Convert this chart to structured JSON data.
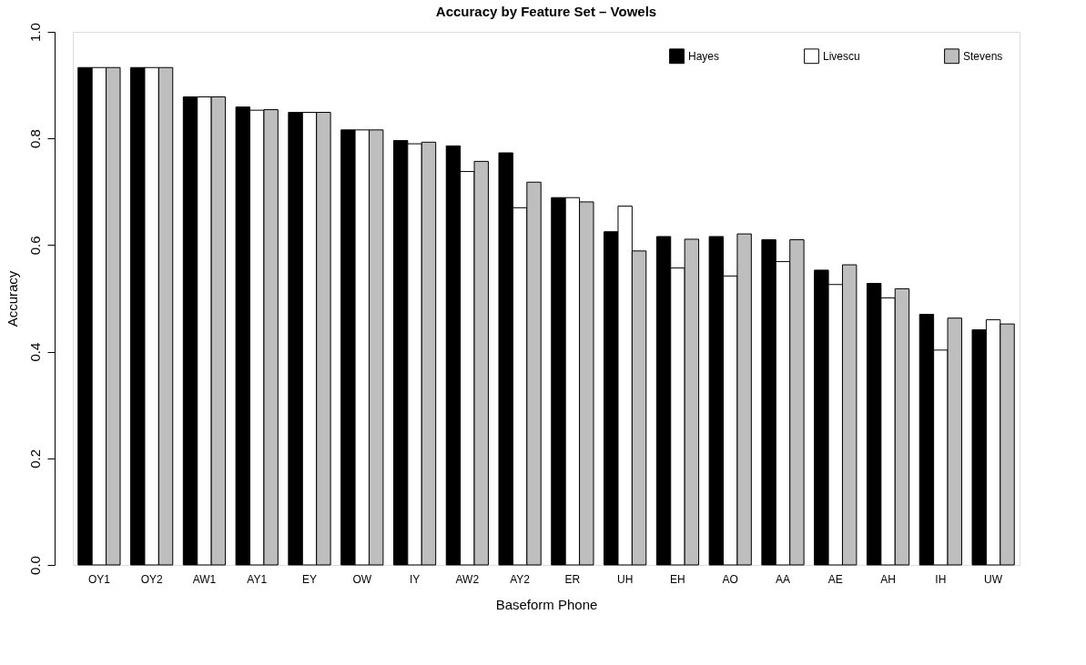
{
  "chart_data": {
    "type": "bar",
    "title": "Accuracy by Feature Set – Vowels",
    "xlabel": "Baseform Phone",
    "ylabel": "Accuracy",
    "categories": [
      "OY1",
      "OY2",
      "AW1",
      "AY1",
      "EY",
      "OW",
      "IY",
      "AW2",
      "AY2",
      "ER",
      "UH",
      "EH",
      "AO",
      "AA",
      "AE",
      "AH",
      "IH",
      "UW"
    ],
    "series": [
      {
        "name": "Hayes",
        "color": "#000000",
        "values": [
          0.933,
          0.933,
          0.878,
          0.859,
          0.849,
          0.816,
          0.796,
          0.786,
          0.773,
          0.689,
          0.625,
          0.616,
          0.616,
          0.61,
          0.553,
          0.528,
          0.47,
          0.441
        ]
      },
      {
        "name": "Livescu",
        "color": "#ffffff",
        "values": [
          0.933,
          0.933,
          0.878,
          0.853,
          0.849,
          0.816,
          0.79,
          0.738,
          0.67,
          0.689,
          0.673,
          0.557,
          0.542,
          0.569,
          0.526,
          0.501,
          0.403,
          0.46
        ]
      },
      {
        "name": "Stevens",
        "color": "#bebebe",
        "values": [
          0.933,
          0.933,
          0.878,
          0.854,
          0.849,
          0.816,
          0.793,
          0.757,
          0.718,
          0.681,
          0.589,
          0.611,
          0.621,
          0.61,
          0.563,
          0.518,
          0.463,
          0.452
        ]
      }
    ],
    "ylim": [
      0,
      1
    ],
    "yticks": [
      {
        "value": 0,
        "label": "0.0"
      },
      0.2,
      0.4,
      0.6,
      0.8,
      {
        "value": 1,
        "label": "1.0"
      }
    ],
    "legend": "top right",
    "grid": false
  }
}
